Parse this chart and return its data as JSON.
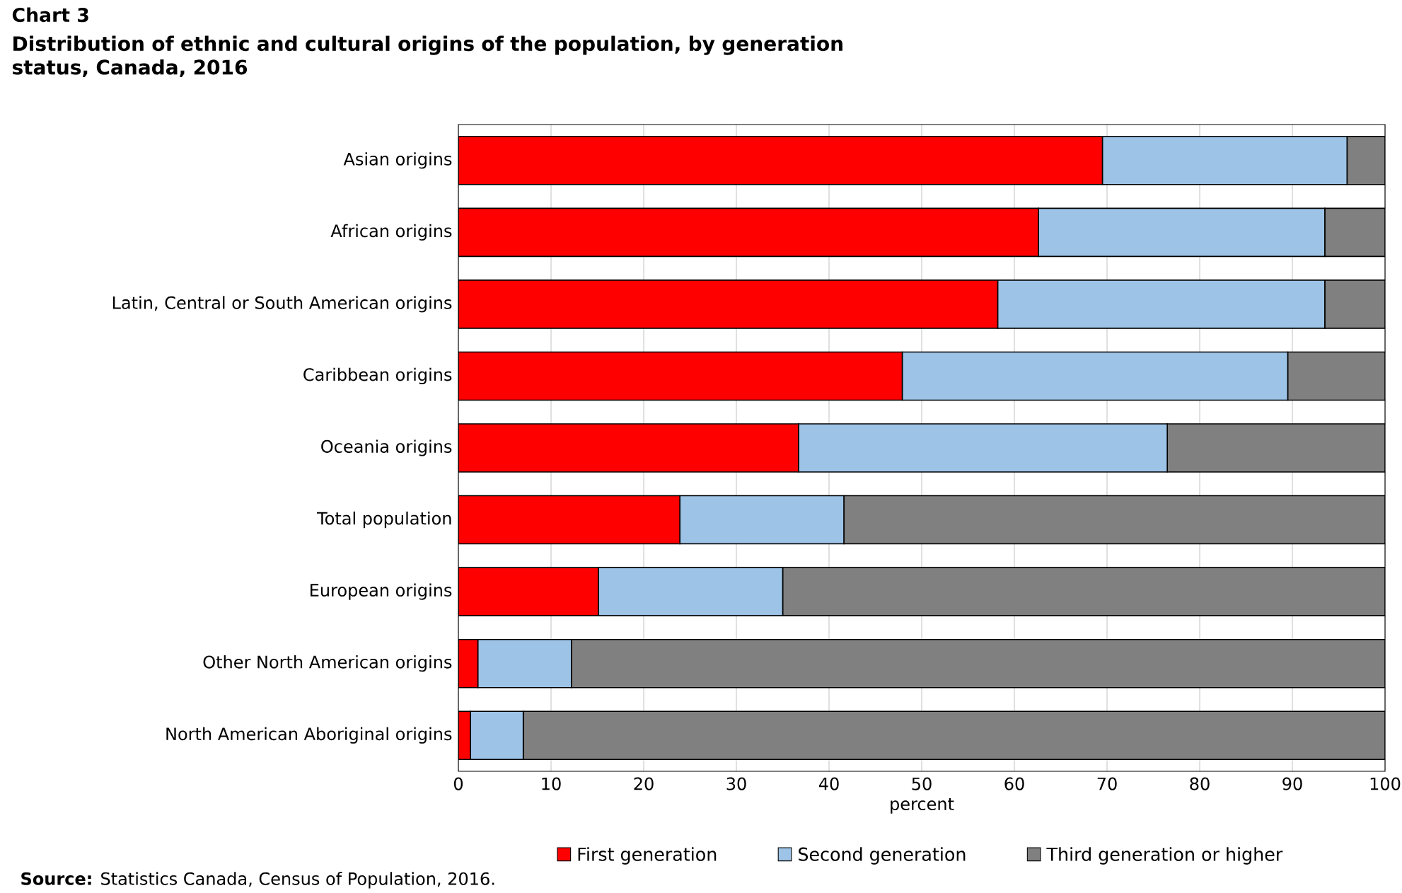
{
  "chart_data": {
    "type": "bar",
    "orientation": "horizontal",
    "stacked": true,
    "title": "Chart 3",
    "subtitle": "Distribution of ethnic and cultural origins of the population, by generation status, Canada, 2016",
    "xlabel": "percent",
    "categories": [
      "Asian origins",
      "African origins",
      "Latin, Central or South American origins",
      "Caribbean origins",
      "Oceania origins",
      "Total population",
      "European origins",
      "Other North American origins",
      "North American Aboriginal origins"
    ],
    "series": [
      {
        "name": "First generation",
        "color": "#ff0000",
        "values": [
          69.5,
          62.6,
          58.2,
          47.9,
          36.7,
          23.9,
          15.1,
          2.1,
          1.3
        ]
      },
      {
        "name": "Second generation",
        "color": "#9dc3e6",
        "values": [
          26.4,
          30.9,
          35.3,
          41.6,
          39.8,
          17.7,
          19.9,
          10.1,
          5.7
        ]
      },
      {
        "name": "Third generation or higher",
        "color": "#808080",
        "values": [
          4.1,
          6.5,
          6.5,
          10.5,
          23.5,
          58.4,
          65.0,
          87.8,
          93.0
        ]
      }
    ],
    "xlim": [
      0,
      100
    ],
    "xticks": [
      0,
      10,
      20,
      30,
      40,
      50,
      60,
      70,
      80,
      90,
      100
    ],
    "grid": "x",
    "legend": "bottom",
    "annotations": [
      "**Source:** Statistics Canada, Census of Population, 2016."
    ]
  }
}
